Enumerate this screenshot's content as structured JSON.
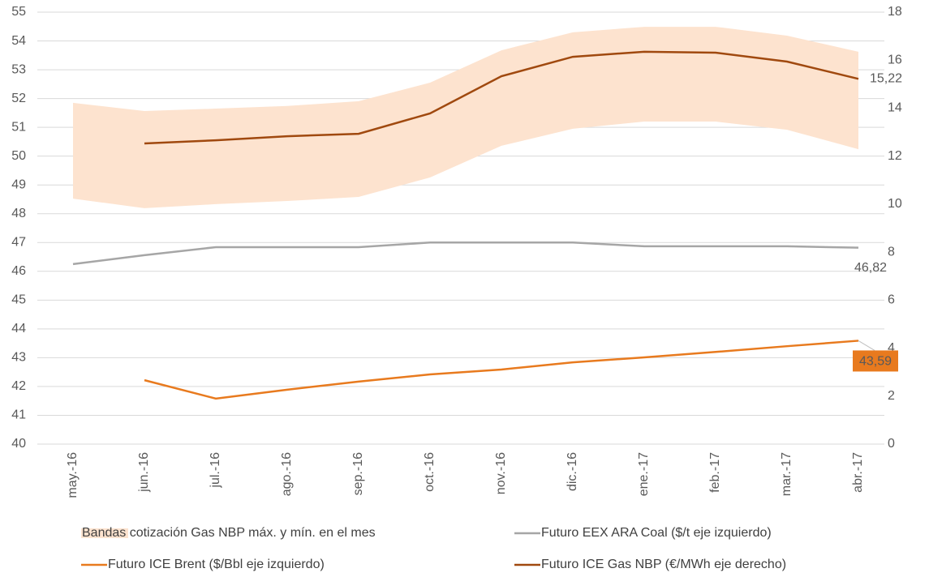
{
  "chart_data": {
    "type": "line",
    "categories": [
      "may.-16",
      "jun.-16",
      "jul.-16",
      "ago.-16",
      "sep.-16",
      "oct.-16",
      "nov.-16",
      "dic.-16",
      "ene.-17",
      "feb.-17",
      "mar.-17",
      "abr.-17"
    ],
    "ylim": [
      40,
      55
    ],
    "yticks": [
      40,
      41,
      42,
      43,
      44,
      45,
      46,
      47,
      48,
      49,
      50,
      51,
      52,
      53,
      54,
      55
    ],
    "y2lim": [
      0,
      18
    ],
    "y2ticks": [
      0,
      2,
      4,
      6,
      8,
      10,
      12,
      14,
      16,
      18
    ],
    "grid": true,
    "band": {
      "name": "Bandas cotización Gas NBP máx. y mín. en el mes",
      "color": "#fde3cf",
      "axis": "y2",
      "high": [
        14.22,
        13.88,
        13.98,
        14.09,
        14.29,
        15.06,
        16.41,
        17.16,
        17.39,
        17.39,
        17.02,
        16.35
      ],
      "low": [
        10.23,
        9.83,
        10.0,
        10.13,
        10.3,
        11.11,
        12.43,
        13.14,
        13.44,
        13.44,
        13.1,
        12.29
      ]
    },
    "series": [
      {
        "name": "Futuro EEX ARA Coal ($/t eje izquierdo)",
        "color": "#a6a6a6",
        "values": [
          46.25,
          46.56,
          46.84,
          46.84,
          46.84,
          47.0,
          47.0,
          47.0,
          46.87,
          46.87,
          46.87,
          46.82
        ],
        "value_labels": [
          null,
          null,
          null,
          null,
          null,
          null,
          null,
          null,
          null,
          null,
          null,
          "46,82"
        ]
      },
      {
        "name": "Futuro ICE Brent ($/Bbl eje izquierdo)",
        "color": "#e87a1e",
        "values": [
          null,
          42.22,
          41.58,
          41.89,
          42.17,
          42.42,
          42.59,
          42.84,
          43.01,
          43.2,
          43.4,
          43.59
        ],
        "value_labels": [
          null,
          null,
          null,
          null,
          null,
          null,
          null,
          null,
          null,
          null,
          null,
          "43,59"
        ]
      },
      {
        "name": "Futuro ICE Gas NBP (€/MWh eje derecho)",
        "color": "#a0490f",
        "axis": "y2",
        "values": [
          null,
          12.53,
          12.66,
          12.83,
          12.93,
          13.78,
          15.33,
          16.14,
          16.35,
          16.31,
          15.94,
          15.22
        ],
        "value_labels": [
          null,
          null,
          null,
          null,
          null,
          null,
          null,
          null,
          null,
          null,
          null,
          "15,22"
        ]
      }
    ]
  }
}
